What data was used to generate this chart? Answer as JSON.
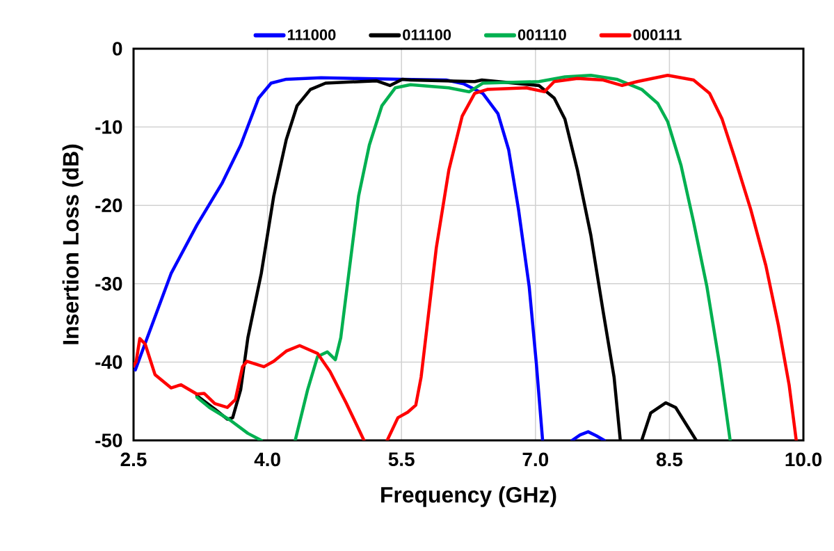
{
  "chart_data": {
    "type": "line",
    "xlabel": "Frequency (GHz)",
    "ylabel": "Insertion Loss (dB)",
    "xlim": [
      2.5,
      10.0
    ],
    "ylim": [
      -50,
      0
    ],
    "xticks": [
      2.5,
      {
        "value": 4.0,
        "label": "4.0"
      },
      5.5,
      {
        "value": 7.0,
        "label": "7.0"
      },
      8.5,
      {
        "value": 10.0,
        "label": "10.0"
      }
    ],
    "yticks": [
      -50,
      -40,
      -30,
      -20,
      -10,
      0
    ],
    "grid": true,
    "legend": "top",
    "series": [
      {
        "name": "111000",
        "color": "#0000ff",
        "x": [
          2.52,
          2.92,
          3.21,
          3.49,
          3.7,
          3.9,
          4.04,
          4.21,
          4.6,
          5.0,
          5.5,
          6.0,
          6.2,
          6.41,
          6.58,
          6.7,
          6.81,
          6.93,
          7.01,
          7.08,
          7.25,
          7.41,
          7.5,
          7.59,
          7.68,
          7.77
        ],
        "values": [
          -41,
          -28.7,
          -22.5,
          -17.2,
          -12.3,
          -6.3,
          -4.4,
          -3.9,
          -3.7,
          -3.8,
          -3.9,
          -4.0,
          -4.5,
          -5.7,
          -8.3,
          -12.9,
          -20.5,
          -30.4,
          -40.2,
          -50,
          null,
          -50,
          -49.3,
          -48.9,
          -49.4,
          -50
        ]
      },
      {
        "name": "011100",
        "color": "#000000",
        "x": [
          3.21,
          3.41,
          3.55,
          3.61,
          3.7,
          3.78,
          3.93,
          4.07,
          4.21,
          4.33,
          4.48,
          4.65,
          5.22,
          5.37,
          5.51,
          5.6,
          6.32,
          6.4,
          7.04,
          7.21,
          7.33,
          7.47,
          7.62,
          7.76,
          7.88,
          7.95,
          8.07,
          8.19,
          8.29,
          8.46,
          8.57,
          8.8
        ],
        "values": [
          -44.3,
          -46,
          -47.3,
          -47.1,
          -43.5,
          -36.9,
          -28.7,
          -18.8,
          -11.6,
          -7.3,
          -5.2,
          -4.4,
          -4.1,
          -4.7,
          -3.9,
          -4.0,
          -4.2,
          -4.0,
          -4.7,
          -6.3,
          -9.0,
          -15.5,
          -23.8,
          -33.7,
          -41.9,
          -50,
          null,
          -50,
          -46.5,
          -45.2,
          -45.8,
          -50
        ]
      },
      {
        "name": "001110",
        "color": "#00b050",
        "x": [
          3.21,
          3.35,
          3.58,
          3.78,
          3.93,
          4.1,
          4.31,
          4.45,
          4.56,
          4.67,
          4.76,
          4.82,
          4.91,
          5.02,
          5.14,
          5.28,
          5.43,
          5.6,
          6.03,
          6.26,
          6.41,
          7.04,
          7.33,
          7.62,
          7.91,
          8.19,
          8.37,
          8.48,
          8.63,
          8.77,
          8.92,
          9.06,
          9.18
        ],
        "values": [
          -44.5,
          -45.8,
          -47.4,
          -49.1,
          -50,
          null,
          -50,
          -43.5,
          -39.3,
          -38.7,
          -39.7,
          -36.9,
          -28.7,
          -18.8,
          -12.3,
          -7.3,
          -5.0,
          -4.6,
          -5.0,
          -5.5,
          -4.4,
          -4.2,
          -3.6,
          -3.4,
          -3.9,
          -5.2,
          -7.0,
          -9.3,
          -14.9,
          -22.1,
          -30.4,
          -40.2,
          -50
        ]
      },
      {
        "name": "000111",
        "color": "#ff0000",
        "x": [
          2.5,
          2.53,
          2.57,
          2.63,
          2.74,
          2.92,
          3.03,
          3.21,
          3.29,
          3.41,
          3.55,
          3.64,
          3.72,
          3.77,
          3.96,
          4.07,
          4.21,
          4.36,
          4.56,
          4.7,
          4.88,
          5.08,
          5.2,
          5.34,
          5.46,
          5.57,
          5.66,
          5.72,
          5.89,
          6.03,
          6.18,
          6.32,
          6.46,
          6.9,
          7.1,
          7.21,
          7.47,
          7.76,
          7.97,
          8.14,
          8.48,
          8.77,
          8.95,
          9.09,
          9.23,
          9.41,
          9.58,
          9.72,
          9.84,
          9.92
        ],
        "values": [
          -40.5,
          -39.9,
          -37,
          -37.7,
          -41.6,
          -43.3,
          -42.9,
          -44.1,
          -44.0,
          -45.3,
          -45.8,
          -44.8,
          -40.6,
          -39.9,
          -40.6,
          -39.9,
          -38.6,
          -37.9,
          -38.9,
          -41.2,
          -45.2,
          -50,
          null,
          -50,
          -47.1,
          -46.4,
          -45.5,
          -41.9,
          -25.4,
          -15.5,
          -8.6,
          -5.7,
          -5.2,
          -5.0,
          -5.5,
          -4.2,
          -3.8,
          -4.0,
          -4.7,
          -4.2,
          -3.4,
          -4.0,
          -5.7,
          -9.0,
          -13.9,
          -20.5,
          -27.7,
          -35.3,
          -42.9,
          -50
        ]
      }
    ]
  }
}
